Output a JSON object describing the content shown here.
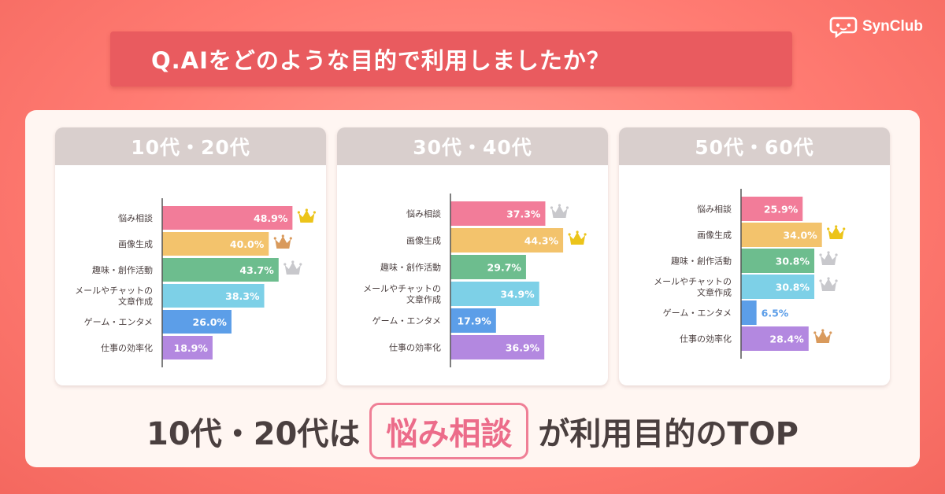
{
  "brand": {
    "name": "SynClub",
    "logo_icon": "controller-chat-icon"
  },
  "question": "Q.AIをどのような目的で利用しましたか？",
  "summary": {
    "prefix": "10代・20代は",
    "highlight": "悩み相談",
    "suffix": "が利用目的のTOP"
  },
  "colors": {
    "background": "#ff7b72",
    "banner": "#e95b5f",
    "header": "#d9cfcd",
    "highlight": "#ec6c8a",
    "crown_gold": "#ecc41a",
    "crown_silver": "#c8c8cc",
    "crown_bronze": "#d99a5c"
  },
  "chart_data": [
    {
      "type": "bar",
      "orientation": "horizontal",
      "title": "10代・20代",
      "categories": [
        "悩み相談",
        "画像生成",
        "趣味・創作活動",
        "メールやチャットの\n文章作成",
        "ゲーム・エンタメ",
        "仕事の効率化"
      ],
      "values": [
        48.9,
        40.0,
        43.7,
        38.3,
        26.0,
        18.9
      ],
      "labels": [
        "48.9%",
        "40.0%",
        "43.7%",
        "38.3%",
        "26.0%",
        "18.9%"
      ],
      "colors": [
        "#f27c99",
        "#f3c36c",
        "#6dbd8e",
        "#7dd0e7",
        "#5c9ee8",
        "#b388e0"
      ],
      "crowns": [
        "gold",
        "bronze",
        "silver",
        null,
        null,
        null
      ],
      "xlim": [
        0,
        50
      ]
    },
    {
      "type": "bar",
      "orientation": "horizontal",
      "title": "30代・40代",
      "categories": [
        "悩み相談",
        "画像生成",
        "趣味・創作活動",
        "メールやチャットの\n文章作成",
        "ゲーム・エンタメ",
        "仕事の効率化"
      ],
      "values": [
        37.3,
        44.3,
        29.7,
        34.9,
        17.9,
        36.9
      ],
      "labels": [
        "37.3%",
        "44.3%",
        "29.7%",
        "34.9%",
        "17.9%",
        "36.9%"
      ],
      "colors": [
        "#f27c99",
        "#f3c36c",
        "#6dbd8e",
        "#7dd0e7",
        "#5c9ee8",
        "#b388e0"
      ],
      "crowns": [
        "silver",
        "gold",
        null,
        null,
        null,
        null
      ],
      "xlim": [
        0,
        50
      ]
    },
    {
      "type": "bar",
      "orientation": "horizontal",
      "title": "50代・60代",
      "categories": [
        "悩み相談",
        "画像生成",
        "趣味・創作活動",
        "メールやチャットの\n文章作成",
        "ゲーム・エンタメ",
        "仕事の効率化"
      ],
      "values": [
        25.9,
        34.0,
        30.8,
        30.8,
        6.5,
        28.4
      ],
      "labels": [
        "25.9%",
        "34.0%",
        "30.8%",
        "30.8%",
        "6.5%",
        "28.4%"
      ],
      "colors": [
        "#f27c99",
        "#f3c36c",
        "#6dbd8e",
        "#7dd0e7",
        "#5c9ee8",
        "#b388e0"
      ],
      "crowns": [
        null,
        "gold",
        "silver",
        "silver",
        null,
        "bronze"
      ],
      "xlim": [
        0,
        50
      ]
    }
  ]
}
